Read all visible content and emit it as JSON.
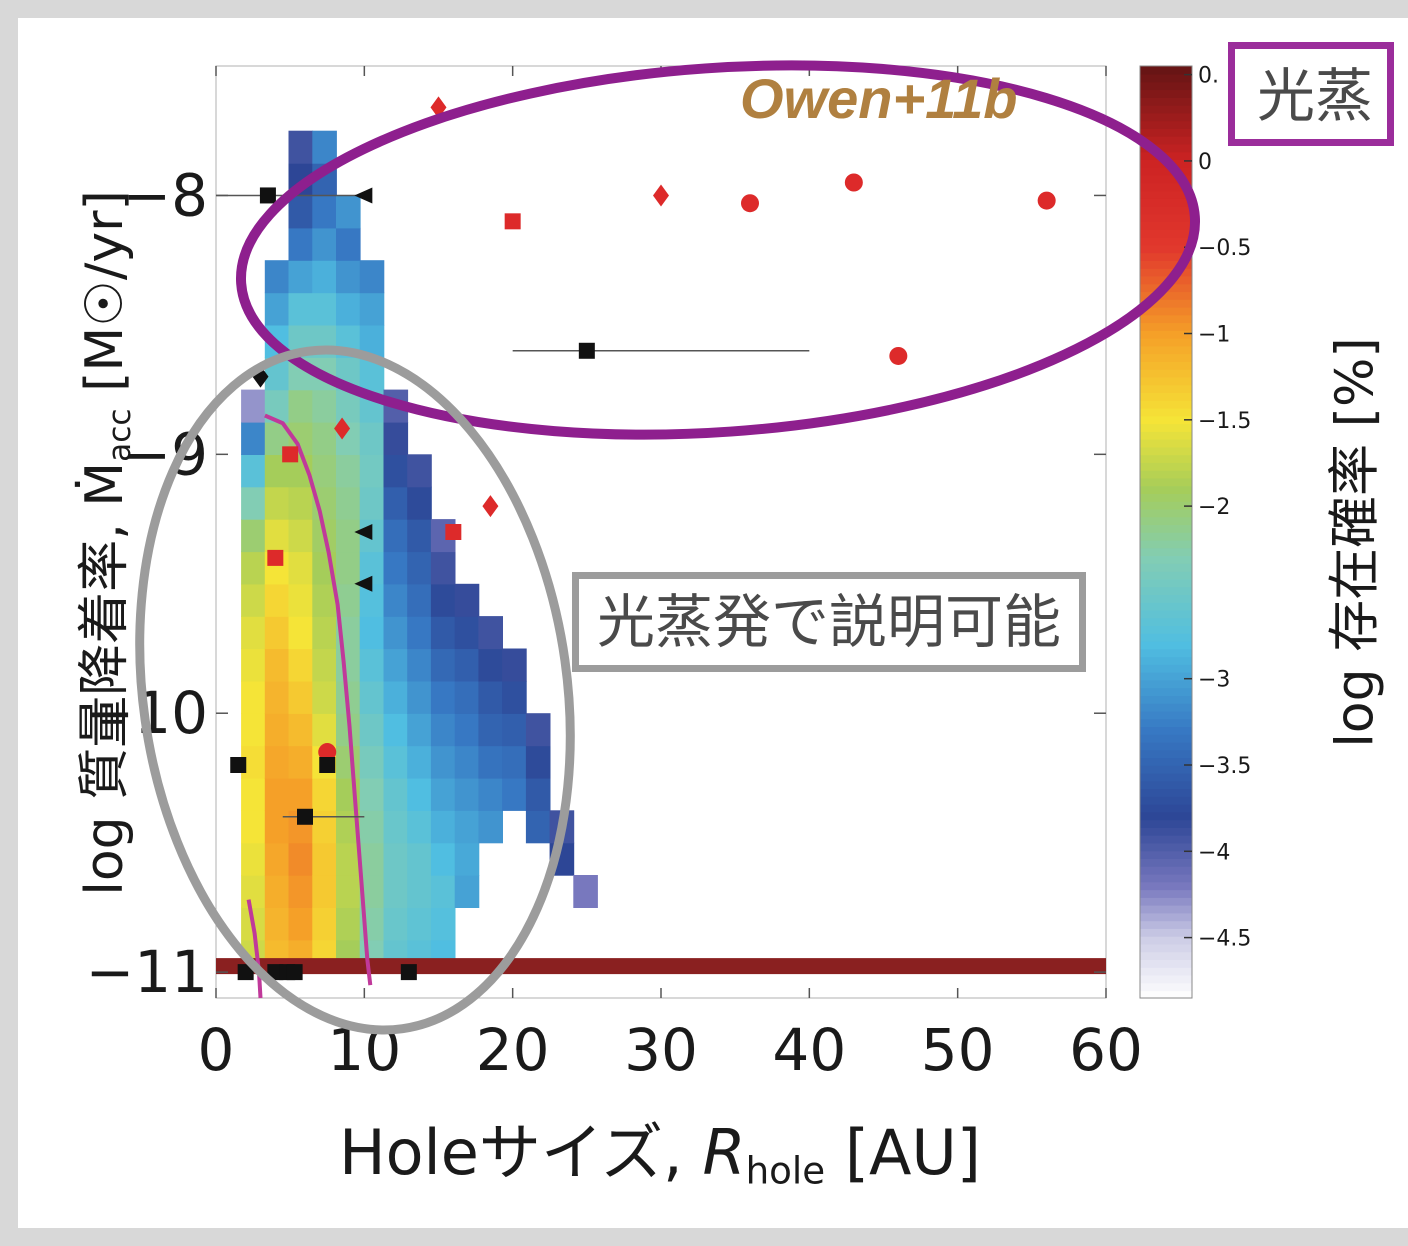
{
  "chart_data": {
    "type": "heatmap",
    "title": "",
    "annotation_model": "Owen+11b",
    "xlabel_parts": [
      "Holeサイズ, ",
      "R",
      "hole",
      " [AU]"
    ],
    "ylabel_parts": [
      "log 質量降着率, Ṁ",
      "acc",
      " [M☉/yr]"
    ],
    "colorbar_label": "log 存在確率 [%]",
    "xlim": [
      0,
      60
    ],
    "ylim": [
      -11.1,
      -7.5
    ],
    "x_ticks": [
      0,
      10,
      20,
      30,
      40,
      50,
      60
    ],
    "x_tick_labels": [
      "0",
      "10",
      "20",
      "30",
      "40",
      "50",
      "60"
    ],
    "y_ticks": [
      -11,
      -10,
      -9,
      -8
    ],
    "y_tick_labels": [
      "−11",
      "−10",
      "−9",
      "−8"
    ],
    "colorbar": {
      "range": [
        -4.85,
        0.55
      ],
      "ticks": [
        0.5,
        0,
        -0.5,
        -1,
        -1.5,
        -2,
        -3,
        -3.5,
        -4,
        -4.5
      ],
      "tick_labels": [
        "0.",
        "0",
        "−0.5",
        "−1",
        "−1.5",
        "−2",
        "−3",
        "−3.5",
        "−4",
        "−4.5"
      ]
    },
    "heatmap_cells": {
      "dx": 1.62,
      "dy": 0.125,
      "columns": [
        {
          "x": 2.5,
          "ymin": -11.0,
          "values": [
            -1.7,
            -1.65,
            -1.6,
            -1.55,
            -1.5,
            -1.5,
            -1.45,
            -1.5,
            -1.5,
            -1.55,
            -1.6,
            -1.7,
            -1.8,
            -2.0,
            -2.3,
            -2.7,
            -3.2,
            -4.3
          ]
        },
        {
          "x": 4.1,
          "ymin": -11.0,
          "values": [
            -1.2,
            -1.15,
            -1.1,
            -1.05,
            -1.0,
            -1.0,
            -1.05,
            -1.1,
            -1.15,
            -1.2,
            -1.3,
            -1.4,
            -1.5,
            -1.6,
            -1.75,
            -1.9,
            -2.1,
            -2.4,
            -2.6,
            -2.8,
            -3.0,
            -3.2
          ]
        },
        {
          "x": 5.7,
          "ymin": -11.0,
          "values": [
            -1.1,
            -1.0,
            -0.95,
            -0.9,
            -0.95,
            -1.0,
            -1.1,
            -1.2,
            -1.3,
            -1.4,
            -1.5,
            -1.55,
            -1.6,
            -1.7,
            -1.8,
            -1.9,
            -2.0,
            -2.1,
            -2.3,
            -2.5,
            -2.7,
            -3.0,
            -3.3,
            -3.6,
            -3.8,
            -3.9
          ]
        },
        {
          "x": 7.3,
          "ymin": -11.0,
          "values": [
            -1.4,
            -1.35,
            -1.3,
            -1.3,
            -1.35,
            -1.4,
            -1.5,
            -1.6,
            -1.7,
            -1.75,
            -1.8,
            -1.85,
            -1.9,
            -1.95,
            -2.0,
            -2.05,
            -2.1,
            -2.2,
            -2.3,
            -2.5,
            -2.7,
            -2.9,
            -3.1,
            -3.3,
            -3.5,
            -3.2
          ]
        },
        {
          "x": 8.9,
          "ymin": -11.0,
          "values": [
            -1.9,
            -1.85,
            -1.8,
            -1.8,
            -1.85,
            -1.9,
            -2.0,
            -2.1,
            -2.15,
            -2.2,
            -2.2,
            -2.15,
            -2.1,
            -2.1,
            -2.15,
            -2.2,
            -2.3,
            -2.4,
            -2.5,
            -2.7,
            -2.9,
            -3.1,
            -3.3,
            -3.1
          ]
        },
        {
          "x": 10.5,
          "ymin": -11.0,
          "values": [
            -2.3,
            -2.25,
            -2.2,
            -2.2,
            -2.25,
            -2.3,
            -2.4,
            -2.5,
            -2.6,
            -2.7,
            -2.8,
            -2.75,
            -2.7,
            -2.6,
            -2.5,
            -2.45,
            -2.5,
            -2.6,
            -2.7,
            -2.9,
            -3.0,
            -3.2
          ]
        },
        {
          "x": 12.1,
          "ymin": -11.0,
          "values": [
            -2.6,
            -2.55,
            -2.5,
            -2.5,
            -2.55,
            -2.6,
            -2.7,
            -2.8,
            -2.9,
            -3.0,
            -3.1,
            -3.2,
            -3.3,
            -3.4,
            -3.55,
            -3.7,
            -3.85,
            -4.0
          ]
        },
        {
          "x": 13.7,
          "ymin": -11.0,
          "values": [
            -2.7,
            -2.65,
            -2.6,
            -2.6,
            -2.7,
            -2.8,
            -2.9,
            -3.0,
            -3.1,
            -3.2,
            -3.3,
            -3.4,
            -3.5,
            -3.6,
            -3.75,
            -3.9
          ]
        },
        {
          "x": 15.3,
          "ymin": -11.0,
          "values": [
            -2.8,
            -2.75,
            -2.7,
            -2.8,
            -2.9,
            -3.0,
            -3.1,
            -3.2,
            -3.3,
            -3.45,
            -3.6,
            -3.75,
            -3.9,
            -4.05
          ]
        },
        {
          "x": 16.9,
          "ymin": -10.75,
          "values": [
            -3.0,
            -2.95,
            -3.0,
            -3.1,
            -3.2,
            -3.3,
            -3.4,
            -3.55,
            -3.7,
            -3.85
          ]
        },
        {
          "x": 18.5,
          "ymin": -10.5,
          "values": [
            -3.1,
            -3.2,
            -3.35,
            -3.5,
            -3.6,
            -3.75,
            -3.9
          ]
        },
        {
          "x": 20.1,
          "ymin": -10.375,
          "values": [
            -3.3,
            -3.4,
            -3.55,
            -3.7,
            -3.85
          ]
        },
        {
          "x": 21.7,
          "ymin": -10.5,
          "values": [
            -3.5,
            -3.6,
            -3.75,
            -3.9
          ]
        },
        {
          "x": 23.3,
          "ymin": -10.625,
          "values": [
            -3.8,
            -3.9
          ]
        },
        {
          "x": 24.9,
          "ymin": -10.75,
          "values": [
            -4.2
          ]
        }
      ]
    },
    "markers": [
      {
        "x": 15.0,
        "y": -7.66,
        "shape": "diamond",
        "color": "#dd2a2a"
      },
      {
        "x": 30.0,
        "y": -8.0,
        "shape": "diamond",
        "color": "#dd2a2a"
      },
      {
        "x": 20.0,
        "y": -8.1,
        "shape": "square",
        "color": "#dd2a2a"
      },
      {
        "x": 36.0,
        "y": -8.03,
        "shape": "circle",
        "color": "#dd2a2a"
      },
      {
        "x": 43.0,
        "y": -7.95,
        "shape": "circle",
        "color": "#dd2a2a"
      },
      {
        "x": 56.0,
        "y": -8.02,
        "shape": "circle",
        "color": "#dd2a2a"
      },
      {
        "x": 46.0,
        "y": -8.62,
        "shape": "circle",
        "color": "#dd2a2a"
      },
      {
        "x": 25.0,
        "y": -8.6,
        "shape": "square",
        "color": "#111111",
        "xerr": [
          20,
          40
        ]
      },
      {
        "x": 10.0,
        "y": -8.0,
        "shape": "triangle-left",
        "color": "#111111",
        "xerr": [
          0,
          10
        ]
      },
      {
        "x": 3.5,
        "y": -8.0,
        "shape": "square",
        "color": "#111111"
      },
      {
        "x": 3.0,
        "y": -8.7,
        "shape": "diamond",
        "color": "#111111"
      },
      {
        "x": 8.5,
        "y": -8.9,
        "shape": "diamond",
        "color": "#dd2a2a"
      },
      {
        "x": 5.0,
        "y": -9.0,
        "shape": "square",
        "color": "#dd2a2a"
      },
      {
        "x": 18.5,
        "y": -9.2,
        "shape": "diamond",
        "color": "#dd2a2a"
      },
      {
        "x": 16.0,
        "y": -9.3,
        "shape": "square",
        "color": "#dd2a2a"
      },
      {
        "x": 10.0,
        "y": -9.3,
        "shape": "triangle-left",
        "color": "#111111"
      },
      {
        "x": 10.0,
        "y": -9.5,
        "shape": "triangle-left",
        "color": "#111111"
      },
      {
        "x": 4.0,
        "y": -9.4,
        "shape": "square",
        "color": "#dd2a2a"
      },
      {
        "x": 7.5,
        "y": -10.15,
        "shape": "circle",
        "color": "#dd2a2a"
      },
      {
        "x": 1.5,
        "y": -10.2,
        "shape": "square",
        "color": "#111111"
      },
      {
        "x": 7.5,
        "y": -10.2,
        "shape": "square",
        "color": "#111111"
      },
      {
        "x": 6.0,
        "y": -10.4,
        "shape": "square",
        "color": "#111111",
        "xerr": [
          4.5,
          10
        ]
      },
      {
        "x": 2.0,
        "y": -11.0,
        "shape": "square",
        "color": "#111111"
      },
      {
        "x": 4.0,
        "y": -11.0,
        "shape": "square",
        "color": "#111111"
      },
      {
        "x": 4.8,
        "y": -11.0,
        "shape": "square",
        "color": "#111111"
      },
      {
        "x": 5.3,
        "y": -11.0,
        "shape": "square",
        "color": "#111111"
      },
      {
        "x": 13.0,
        "y": -11.0,
        "shape": "square",
        "color": "#111111"
      }
    ],
    "curves": [
      {
        "color": "#c0399a",
        "points": [
          [
            3.3,
            -8.85
          ],
          [
            4.5,
            -8.88
          ],
          [
            5.5,
            -8.96
          ],
          [
            6.3,
            -9.08
          ],
          [
            7.0,
            -9.22
          ],
          [
            7.6,
            -9.38
          ],
          [
            8.2,
            -9.58
          ],
          [
            8.6,
            -9.8
          ],
          [
            9.0,
            -10.05
          ],
          [
            9.4,
            -10.35
          ],
          [
            9.8,
            -10.65
          ],
          [
            10.2,
            -10.95
          ],
          [
            10.4,
            -11.05
          ]
        ]
      },
      {
        "color": "#c0399a",
        "points": [
          [
            2.2,
            -10.72
          ],
          [
            2.6,
            -10.85
          ],
          [
            2.9,
            -11.0
          ],
          [
            3.0,
            -11.1
          ]
        ]
      }
    ],
    "bottom_band": {
      "y": -11.0,
      "xrange": [
        0,
        60
      ],
      "color": "#8a2020"
    }
  },
  "annotations": {
    "photoevap_box": "光蒸発で説明可能",
    "top_box": "光蒸"
  },
  "colors": {
    "ellipse_purple": "#8e1f8e",
    "ellipse_gray": "#9c9c9c",
    "marker_red": "#dd2a2a",
    "marker_black": "#111111",
    "curve_magenta": "#c0399a"
  }
}
